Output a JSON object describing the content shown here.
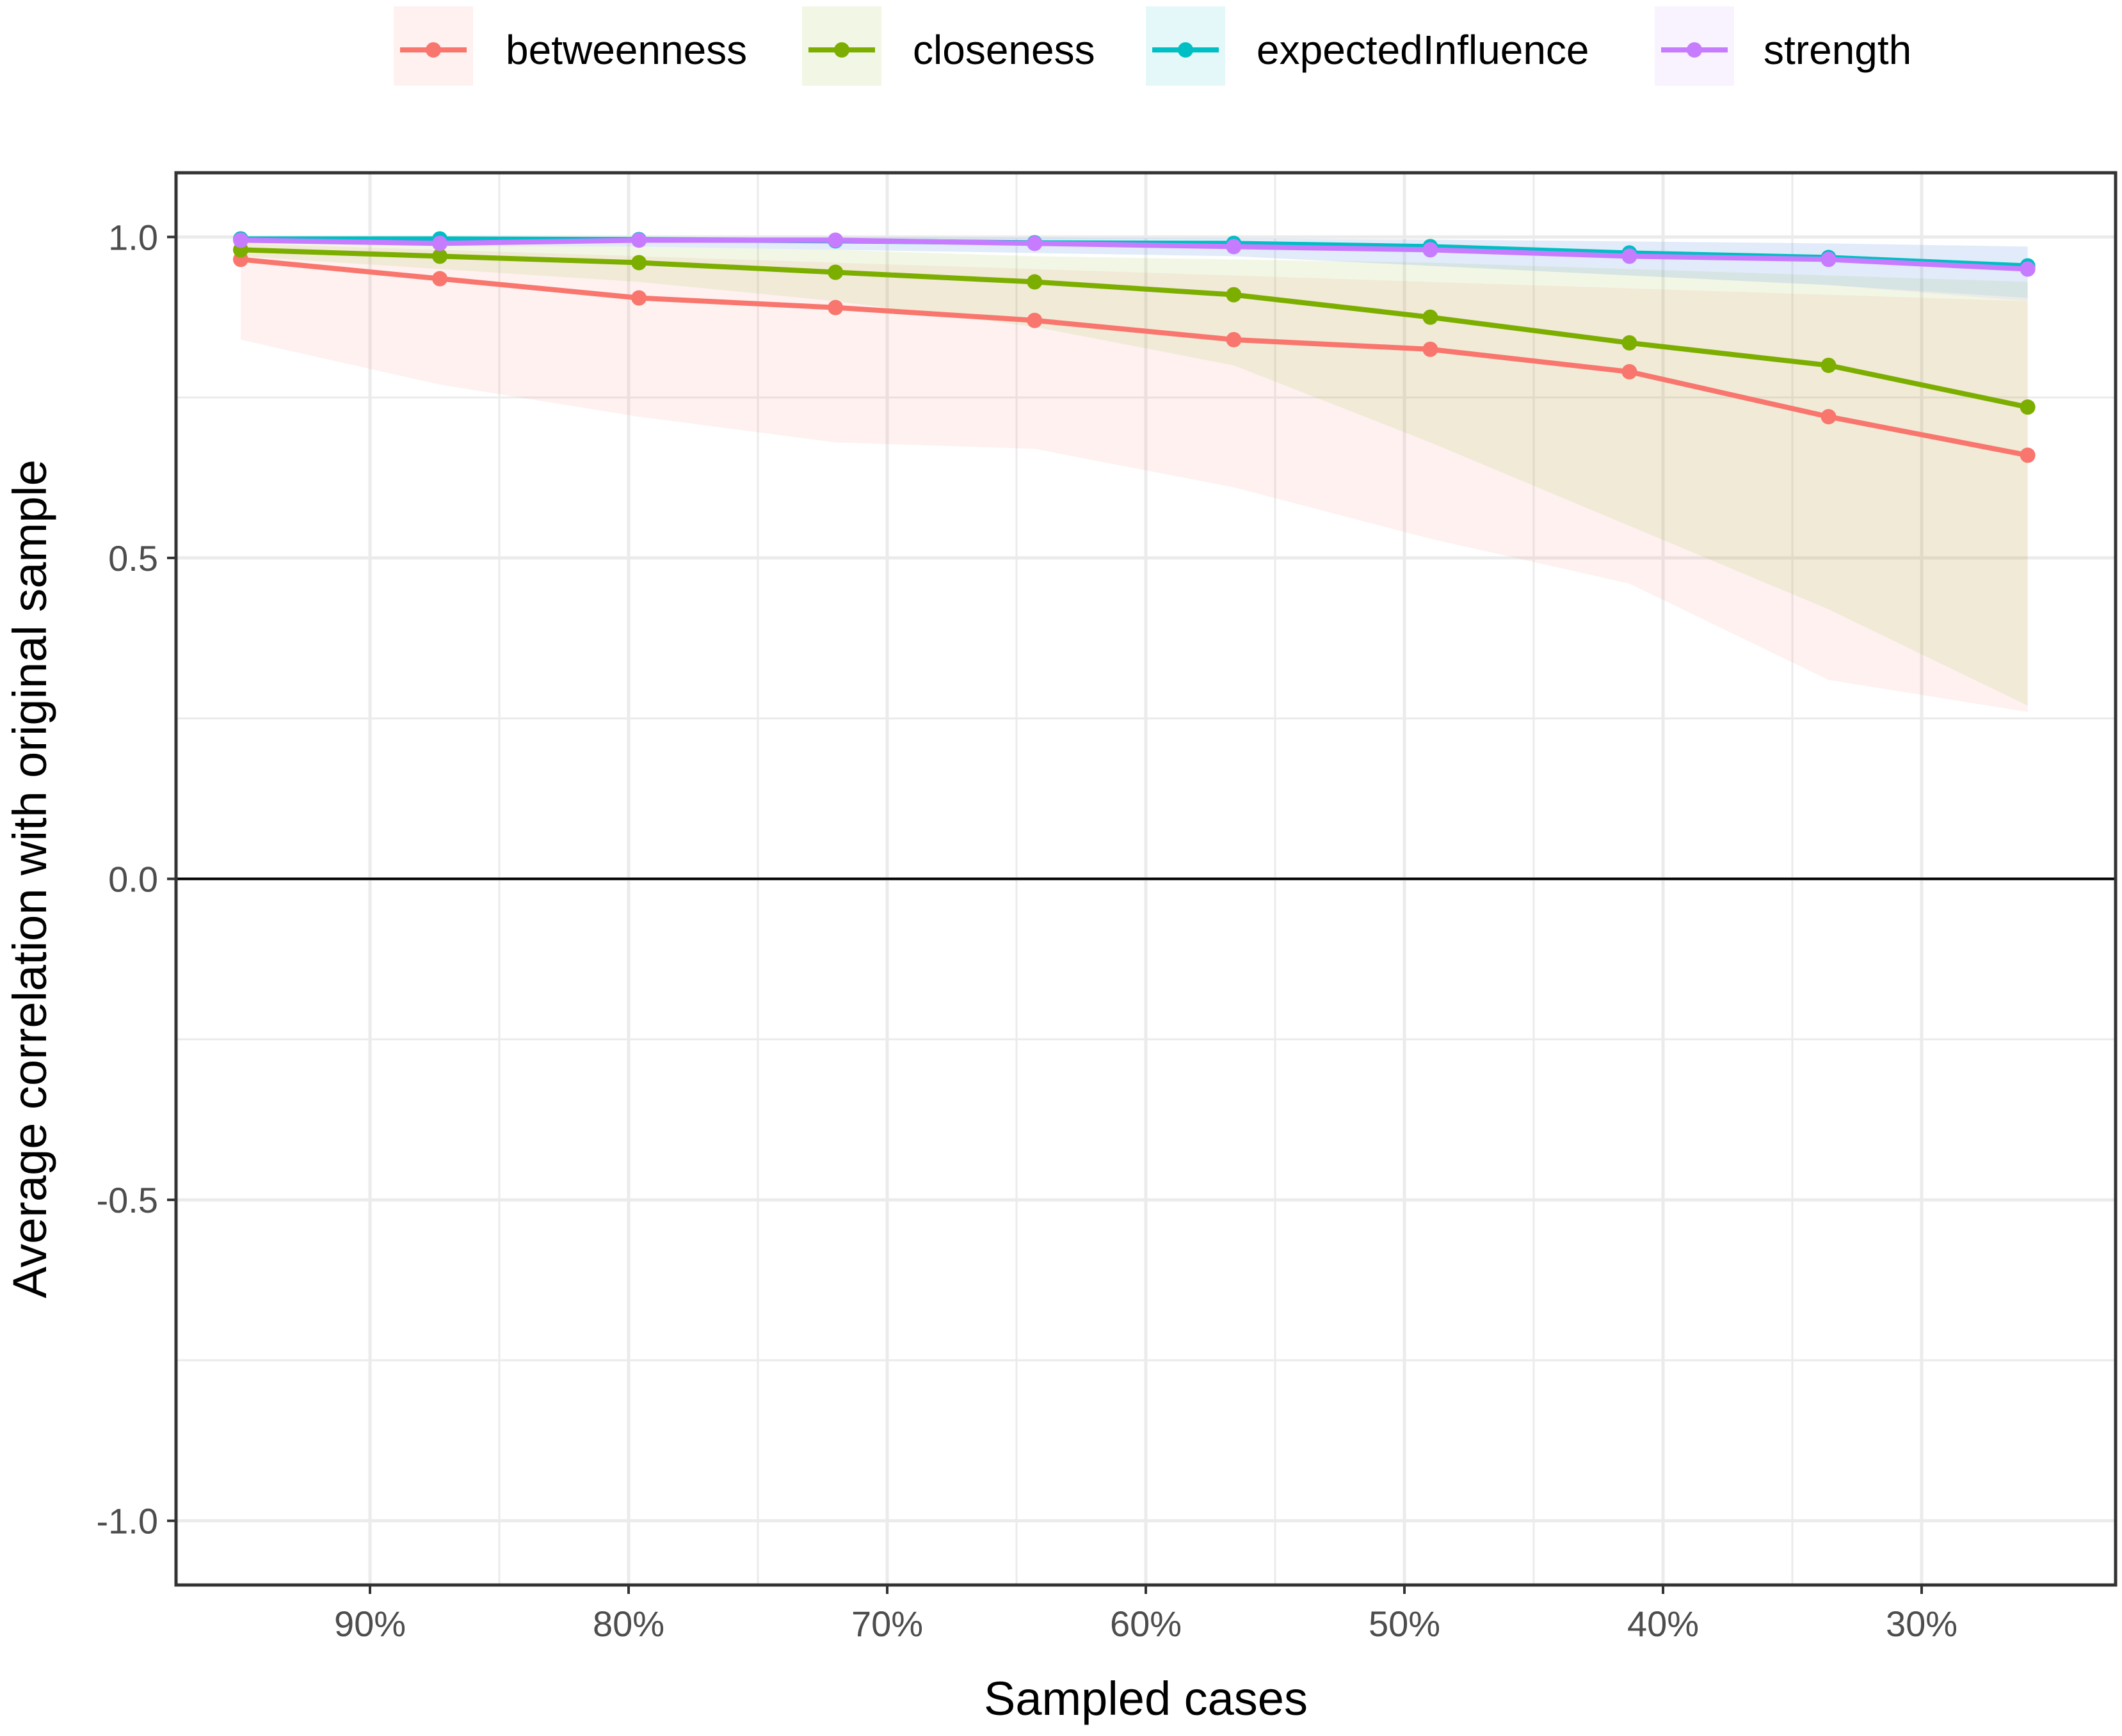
{
  "chart_data": {
    "type": "line",
    "xlabel": "Sampled cases",
    "ylabel": "Average correlation with original sample",
    "x_tick_labels": [
      "90%",
      "80%",
      "70%",
      "60%",
      "50%",
      "40%",
      "30%"
    ],
    "x_tick_values": [
      0.9,
      0.8,
      0.7,
      0.6,
      0.5,
      0.4,
      0.3
    ],
    "x_reversed": true,
    "xlim": [
      0.975,
      0.225
    ],
    "y_tick_labels": [
      "1.0",
      "0.5",
      "0.0",
      "-0.5",
      "-1.0"
    ],
    "y_tick_values": [
      1.0,
      0.5,
      0.0,
      -0.5,
      -1.0
    ],
    "ylim": [
      -1.1,
      1.1
    ],
    "grid": true,
    "legend_position": "top",
    "reference_line_y": 0,
    "x": [
      0.95,
      0.873,
      0.796,
      0.72,
      0.643,
      0.566,
      0.49,
      0.413,
      0.336,
      0.259
    ],
    "series": [
      {
        "name": "betweenness",
        "color": "#F8766D",
        "values": [
          0.965,
          0.935,
          0.905,
          0.89,
          0.87,
          0.84,
          0.825,
          0.79,
          0.72,
          0.66
        ],
        "lower": [
          0.84,
          0.77,
          0.72,
          0.68,
          0.67,
          0.61,
          0.53,
          0.46,
          0.31,
          0.26
        ],
        "upper": [
          0.99,
          0.98,
          0.97,
          0.96,
          0.95,
          0.94,
          0.93,
          0.92,
          0.91,
          0.9
        ]
      },
      {
        "name": "closeness",
        "color": "#7CAE00",
        "values": [
          0.98,
          0.97,
          0.96,
          0.945,
          0.93,
          0.91,
          0.875,
          0.835,
          0.8,
          0.735
        ],
        "lower": [
          0.97,
          0.95,
          0.93,
          0.9,
          0.86,
          0.8,
          0.68,
          0.55,
          0.42,
          0.27
        ],
        "upper": [
          0.99,
          0.99,
          0.985,
          0.98,
          0.97,
          0.965,
          0.96,
          0.95,
          0.94,
          0.93
        ]
      },
      {
        "name": "expectedInfluence",
        "color": "#00BFC4",
        "values": [
          0.997,
          0.997,
          0.996,
          0.994,
          0.991,
          0.99,
          0.985,
          0.975,
          0.968,
          0.955
        ],
        "lower": [
          0.99,
          0.99,
          0.985,
          0.98,
          0.975,
          0.97,
          0.955,
          0.94,
          0.925,
          0.905
        ],
        "upper": [
          1.0,
          1.0,
          1.0,
          1.0,
          0.999,
          0.998,
          0.996,
          0.993,
          0.99,
          0.985
        ]
      },
      {
        "name": "strength",
        "color": "#C77CFF",
        "values": [
          0.995,
          0.99,
          0.995,
          0.995,
          0.99,
          0.985,
          0.98,
          0.97,
          0.965,
          0.95
        ],
        "lower": [
          0.99,
          0.985,
          0.985,
          0.98,
          0.975,
          0.97,
          0.955,
          0.94,
          0.925,
          0.9
        ],
        "upper": [
          1.0,
          1.0,
          1.0,
          1.0,
          0.999,
          0.998,
          0.996,
          0.993,
          0.99,
          0.985
        ]
      }
    ]
  }
}
